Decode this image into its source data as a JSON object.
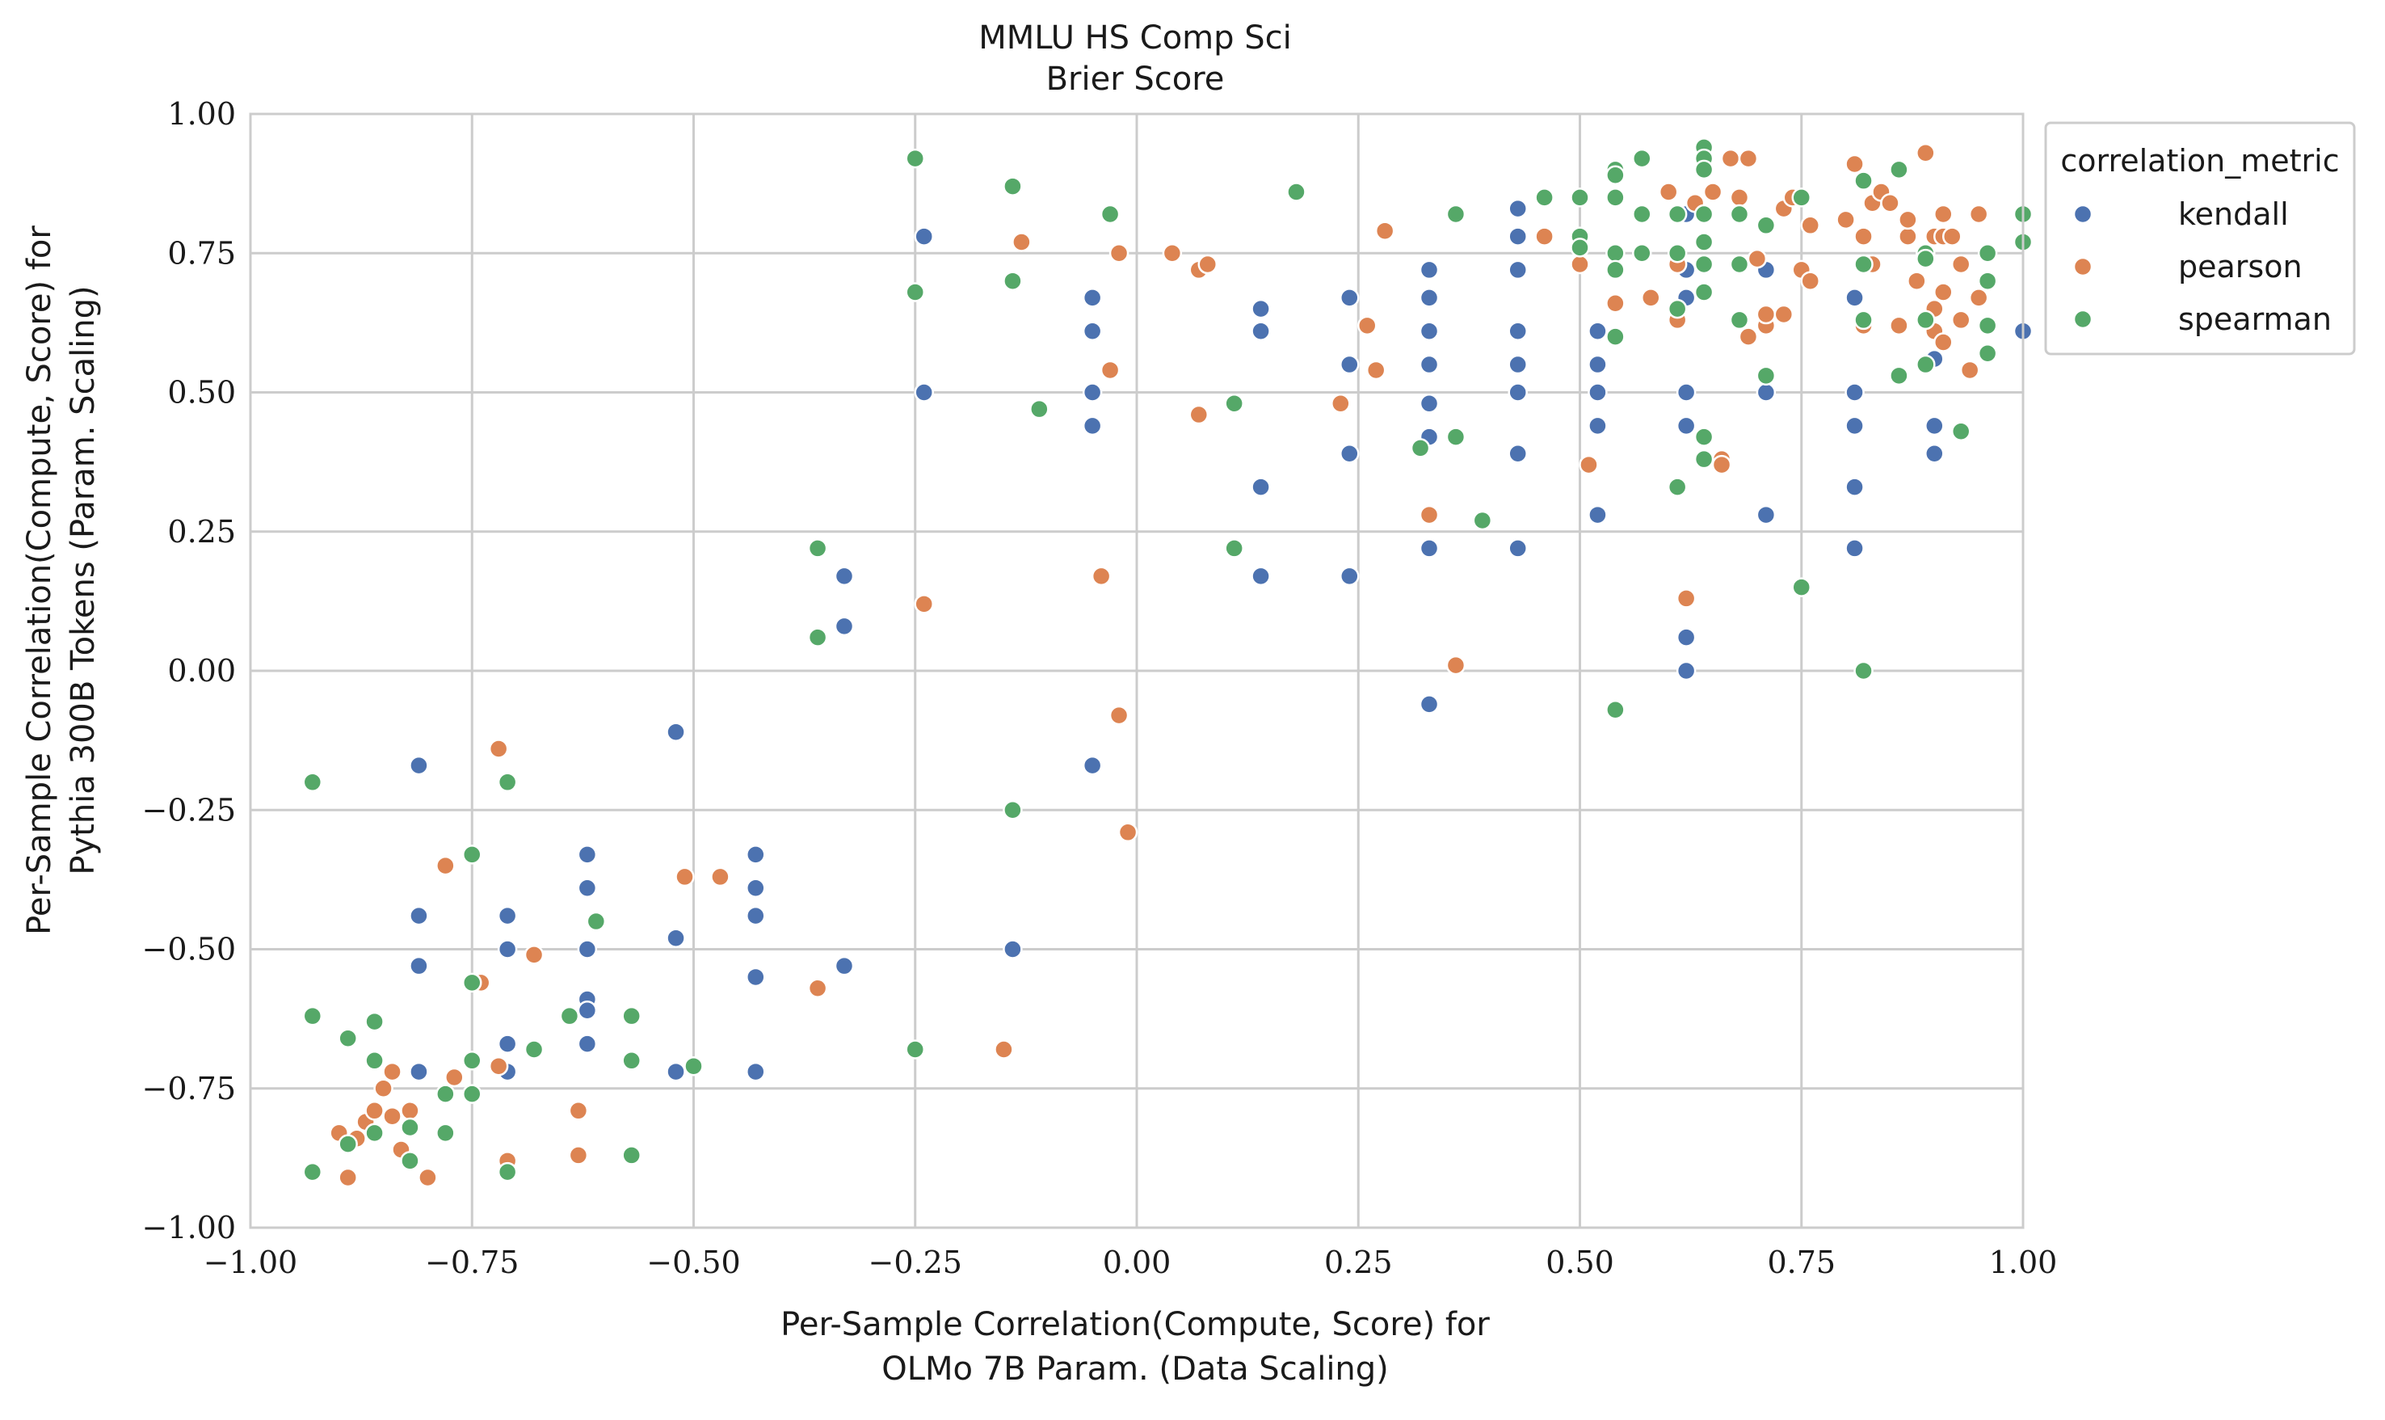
{
  "chart_data": {
    "type": "scatter",
    "title": "MMLU HS Comp Sci",
    "subtitle": "Brier Score",
    "xlabel_lines": [
      "Per-Sample Correlation(Compute, Score) for",
      "OLMo 7B Param. (Data Scaling)"
    ],
    "ylabel_lines": [
      "Per-Sample Correlation(Compute, Score) for",
      "Pythia 300B Tokens (Param. Scaling)"
    ],
    "xlim": [
      -1.0,
      1.0
    ],
    "ylim": [
      -1.0,
      1.0
    ],
    "xticks": [
      -1.0,
      -0.75,
      -0.5,
      -0.25,
      0.0,
      0.25,
      0.5,
      0.75,
      1.0
    ],
    "yticks": [
      -1.0,
      -0.75,
      -0.5,
      -0.25,
      0.0,
      0.25,
      0.5,
      0.75,
      1.0
    ],
    "xtick_labels": [
      "−1.00",
      "−0.75",
      "−0.50",
      "−0.25",
      "0.00",
      "0.25",
      "0.50",
      "0.75",
      "1.00"
    ],
    "ytick_labels": [
      "−1.00",
      "−0.75",
      "−0.50",
      "−0.25",
      "0.00",
      "0.25",
      "0.50",
      "0.75",
      "1.00"
    ],
    "grid": true,
    "legend": {
      "title": "correlation_metric",
      "placement": "outside-top-right"
    },
    "series": [
      {
        "name": "kendall",
        "color": "#4C72B0",
        "points": [
          [
            -0.81,
            -0.17
          ],
          [
            -0.81,
            -0.44
          ],
          [
            -0.81,
            -0.53
          ],
          [
            -0.81,
            -0.72
          ],
          [
            -0.71,
            -0.44
          ],
          [
            -0.71,
            -0.5
          ],
          [
            -0.71,
            -0.67
          ],
          [
            -0.71,
            -0.72
          ],
          [
            -0.62,
            -0.33
          ],
          [
            -0.62,
            -0.39
          ],
          [
            -0.62,
            -0.5
          ],
          [
            -0.62,
            -0.59
          ],
          [
            -0.62,
            -0.61
          ],
          [
            -0.62,
            -0.67
          ],
          [
            -0.52,
            -0.11
          ],
          [
            -0.52,
            -0.48
          ],
          [
            -0.52,
            -0.72
          ],
          [
            -0.43,
            -0.33
          ],
          [
            -0.43,
            -0.39
          ],
          [
            -0.43,
            -0.44
          ],
          [
            -0.43,
            -0.55
          ],
          [
            -0.43,
            -0.72
          ],
          [
            -0.33,
            0.17
          ],
          [
            -0.33,
            0.08
          ],
          [
            -0.33,
            -0.53
          ],
          [
            -0.24,
            0.78
          ],
          [
            -0.24,
            0.5
          ],
          [
            -0.14,
            -0.5
          ],
          [
            -0.05,
            0.67
          ],
          [
            -0.05,
            0.61
          ],
          [
            -0.05,
            0.5
          ],
          [
            -0.05,
            0.44
          ],
          [
            -0.05,
            -0.17
          ],
          [
            0.14,
            0.65
          ],
          [
            0.14,
            0.61
          ],
          [
            0.14,
            0.33
          ],
          [
            0.14,
            0.17
          ],
          [
            0.24,
            0.67
          ],
          [
            0.24,
            0.55
          ],
          [
            0.24,
            0.39
          ],
          [
            0.24,
            0.17
          ],
          [
            0.33,
            0.72
          ],
          [
            0.33,
            0.67
          ],
          [
            0.33,
            0.61
          ],
          [
            0.33,
            0.55
          ],
          [
            0.33,
            0.48
          ],
          [
            0.33,
            0.42
          ],
          [
            0.33,
            0.22
          ],
          [
            0.33,
            -0.06
          ],
          [
            0.43,
            0.83
          ],
          [
            0.43,
            0.78
          ],
          [
            0.43,
            0.72
          ],
          [
            0.43,
            0.61
          ],
          [
            0.43,
            0.55
          ],
          [
            0.43,
            0.5
          ],
          [
            0.43,
            0.39
          ],
          [
            0.43,
            0.22
          ],
          [
            0.52,
            0.61
          ],
          [
            0.52,
            0.55
          ],
          [
            0.52,
            0.5
          ],
          [
            0.52,
            0.44
          ],
          [
            0.52,
            0.28
          ],
          [
            0.62,
            0.82
          ],
          [
            0.62,
            0.72
          ],
          [
            0.62,
            0.67
          ],
          [
            0.62,
            0.5
          ],
          [
            0.62,
            0.44
          ],
          [
            0.62,
            0.06
          ],
          [
            0.62,
            0.0
          ],
          [
            0.71,
            0.72
          ],
          [
            0.71,
            0.5
          ],
          [
            0.71,
            0.28
          ],
          [
            0.81,
            0.67
          ],
          [
            0.81,
            0.5
          ],
          [
            0.81,
            0.44
          ],
          [
            0.81,
            0.33
          ],
          [
            0.81,
            0.22
          ],
          [
            0.9,
            0.56
          ],
          [
            0.9,
            0.44
          ],
          [
            0.9,
            0.39
          ],
          [
            1.0,
            0.61
          ]
        ]
      },
      {
        "name": "pearson",
        "color": "#DD8452",
        "points": [
          [
            -0.9,
            -0.83
          ],
          [
            -0.89,
            -0.91
          ],
          [
            -0.88,
            -0.84
          ],
          [
            -0.87,
            -0.81
          ],
          [
            -0.86,
            -0.79
          ],
          [
            -0.86,
            -0.83
          ],
          [
            -0.85,
            -0.75
          ],
          [
            -0.84,
            -0.72
          ],
          [
            -0.84,
            -0.8
          ],
          [
            -0.83,
            -0.86
          ],
          [
            -0.82,
            -0.79
          ],
          [
            -0.8,
            -0.91
          ],
          [
            -0.78,
            -0.35
          ],
          [
            -0.77,
            -0.73
          ],
          [
            -0.74,
            -0.56
          ],
          [
            -0.72,
            -0.14
          ],
          [
            -0.72,
            -0.71
          ],
          [
            -0.71,
            -0.88
          ],
          [
            -0.68,
            -0.51
          ],
          [
            -0.63,
            -0.79
          ],
          [
            -0.63,
            -0.87
          ],
          [
            -0.51,
            -0.37
          ],
          [
            -0.47,
            -0.37
          ],
          [
            -0.36,
            -0.57
          ],
          [
            -0.24,
            0.12
          ],
          [
            -0.15,
            -0.68
          ],
          [
            -0.13,
            0.77
          ],
          [
            -0.04,
            0.17
          ],
          [
            -0.03,
            0.54
          ],
          [
            -0.02,
            0.75
          ],
          [
            -0.02,
            -0.08
          ],
          [
            -0.01,
            -0.29
          ],
          [
            0.04,
            0.75
          ],
          [
            0.07,
            0.72
          ],
          [
            0.07,
            0.46
          ],
          [
            0.08,
            0.73
          ],
          [
            0.23,
            0.48
          ],
          [
            0.26,
            0.62
          ],
          [
            0.27,
            0.54
          ],
          [
            0.28,
            0.79
          ],
          [
            0.33,
            0.28
          ],
          [
            0.36,
            0.01
          ],
          [
            0.46,
            0.78
          ],
          [
            0.5,
            0.73
          ],
          [
            0.51,
            0.37
          ],
          [
            0.54,
            0.66
          ],
          [
            0.58,
            0.67
          ],
          [
            0.6,
            0.86
          ],
          [
            0.61,
            0.63
          ],
          [
            0.61,
            0.73
          ],
          [
            0.62,
            0.13
          ],
          [
            0.63,
            0.84
          ],
          [
            0.65,
            0.86
          ],
          [
            0.66,
            0.38
          ],
          [
            0.66,
            0.37
          ],
          [
            0.67,
            0.92
          ],
          [
            0.68,
            0.85
          ],
          [
            0.69,
            0.6
          ],
          [
            0.69,
            0.92
          ],
          [
            0.7,
            0.74
          ],
          [
            0.71,
            0.62
          ],
          [
            0.71,
            0.64
          ],
          [
            0.73,
            0.83
          ],
          [
            0.73,
            0.64
          ],
          [
            0.74,
            0.85
          ],
          [
            0.75,
            0.72
          ],
          [
            0.76,
            0.7
          ],
          [
            0.76,
            0.8
          ],
          [
            0.8,
            0.81
          ],
          [
            0.81,
            0.91
          ],
          [
            0.82,
            0.78
          ],
          [
            0.82,
            0.62
          ],
          [
            0.83,
            0.84
          ],
          [
            0.83,
            0.73
          ],
          [
            0.84,
            0.86
          ],
          [
            0.85,
            0.84
          ],
          [
            0.86,
            0.62
          ],
          [
            0.87,
            0.78
          ],
          [
            0.87,
            0.81
          ],
          [
            0.88,
            0.7
          ],
          [
            0.89,
            0.93
          ],
          [
            0.9,
            0.65
          ],
          [
            0.9,
            0.61
          ],
          [
            0.9,
            0.78
          ],
          [
            0.91,
            0.59
          ],
          [
            0.91,
            0.68
          ],
          [
            0.91,
            0.82
          ],
          [
            0.91,
            0.78
          ],
          [
            0.92,
            0.78
          ],
          [
            0.93,
            0.73
          ],
          [
            0.93,
            0.63
          ],
          [
            0.94,
            0.54
          ],
          [
            0.95,
            0.82
          ],
          [
            0.95,
            0.67
          ]
        ]
      },
      {
        "name": "spearman",
        "color": "#55A868",
        "points": [
          [
            -0.93,
            -0.2
          ],
          [
            -0.93,
            -0.62
          ],
          [
            -0.93,
            -0.9
          ],
          [
            -0.89,
            -0.66
          ],
          [
            -0.89,
            -0.85
          ],
          [
            -0.86,
            -0.63
          ],
          [
            -0.86,
            -0.7
          ],
          [
            -0.86,
            -0.83
          ],
          [
            -0.82,
            -0.82
          ],
          [
            -0.82,
            -0.88
          ],
          [
            -0.78,
            -0.76
          ],
          [
            -0.78,
            -0.83
          ],
          [
            -0.75,
            -0.33
          ],
          [
            -0.75,
            -0.56
          ],
          [
            -0.75,
            -0.7
          ],
          [
            -0.75,
            -0.76
          ],
          [
            -0.71,
            -0.2
          ],
          [
            -0.71,
            -0.9
          ],
          [
            -0.68,
            -0.68
          ],
          [
            -0.64,
            -0.62
          ],
          [
            -0.61,
            -0.45
          ],
          [
            -0.57,
            -0.62
          ],
          [
            -0.57,
            -0.7
          ],
          [
            -0.57,
            -0.87
          ],
          [
            -0.5,
            -0.71
          ],
          [
            -0.36,
            0.22
          ],
          [
            -0.36,
            0.06
          ],
          [
            -0.25,
            0.92
          ],
          [
            -0.25,
            0.68
          ],
          [
            -0.25,
            -0.68
          ],
          [
            -0.14,
            0.87
          ],
          [
            -0.14,
            0.7
          ],
          [
            -0.14,
            -0.25
          ],
          [
            -0.11,
            0.47
          ],
          [
            -0.03,
            0.82
          ],
          [
            0.11,
            0.48
          ],
          [
            0.11,
            0.22
          ],
          [
            0.18,
            0.86
          ],
          [
            0.32,
            0.4
          ],
          [
            0.36,
            0.82
          ],
          [
            0.36,
            0.42
          ],
          [
            0.39,
            0.27
          ],
          [
            0.46,
            0.85
          ],
          [
            0.5,
            0.85
          ],
          [
            0.5,
            0.78
          ],
          [
            0.5,
            0.76
          ],
          [
            0.54,
            0.9
          ],
          [
            0.54,
            0.89
          ],
          [
            0.54,
            0.85
          ],
          [
            0.54,
            0.75
          ],
          [
            0.54,
            0.72
          ],
          [
            0.54,
            0.6
          ],
          [
            0.54,
            -0.07
          ],
          [
            0.57,
            0.92
          ],
          [
            0.57,
            0.82
          ],
          [
            0.57,
            0.75
          ],
          [
            0.61,
            0.82
          ],
          [
            0.61,
            0.75
          ],
          [
            0.61,
            0.65
          ],
          [
            0.61,
            0.33
          ],
          [
            0.64,
            0.94
          ],
          [
            0.64,
            0.92
          ],
          [
            0.64,
            0.9
          ],
          [
            0.64,
            0.82
          ],
          [
            0.64,
            0.77
          ],
          [
            0.64,
            0.73
          ],
          [
            0.64,
            0.68
          ],
          [
            0.64,
            0.42
          ],
          [
            0.64,
            0.38
          ],
          [
            0.68,
            0.82
          ],
          [
            0.68,
            0.73
          ],
          [
            0.68,
            0.63
          ],
          [
            0.71,
            0.8
          ],
          [
            0.71,
            0.53
          ],
          [
            0.75,
            0.85
          ],
          [
            0.75,
            0.15
          ],
          [
            0.82,
            0.88
          ],
          [
            0.82,
            0.73
          ],
          [
            0.82,
            0.63
          ],
          [
            0.82,
            0.0
          ],
          [
            0.86,
            0.9
          ],
          [
            0.86,
            0.53
          ],
          [
            0.89,
            0.75
          ],
          [
            0.89,
            0.74
          ],
          [
            0.89,
            0.55
          ],
          [
            0.89,
            0.63
          ],
          [
            0.93,
            0.43
          ],
          [
            0.96,
            0.75
          ],
          [
            0.96,
            0.7
          ],
          [
            0.96,
            0.62
          ],
          [
            0.96,
            0.57
          ],
          [
            1.0,
            0.82
          ],
          [
            1.0,
            0.77
          ]
        ]
      }
    ]
  }
}
